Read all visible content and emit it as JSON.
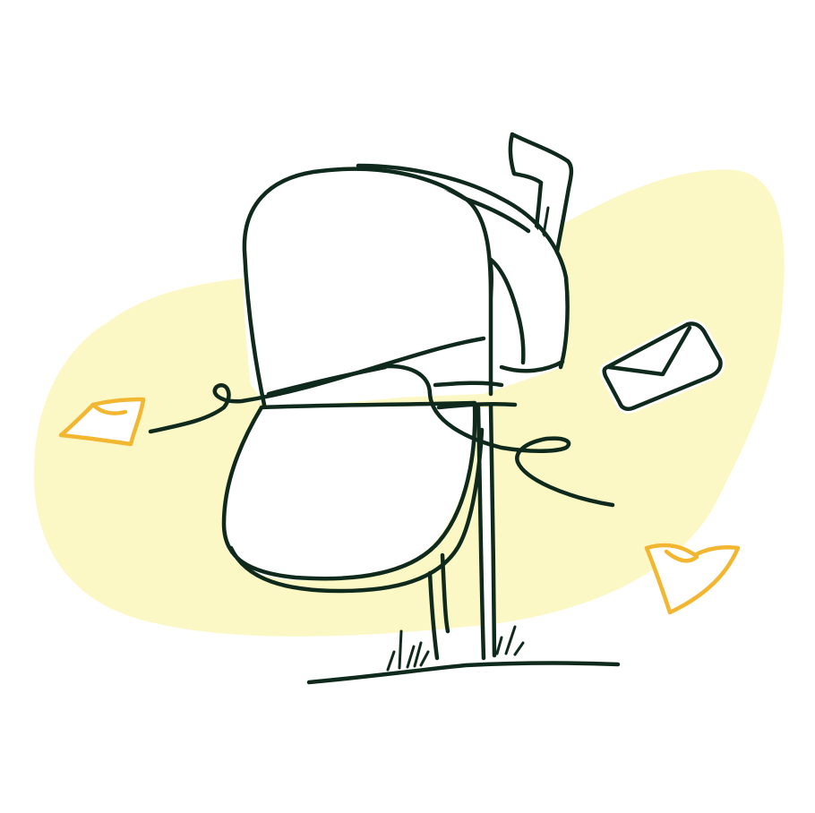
{
  "scene": {
    "subject": "mailbox",
    "background_color": "#ffffff",
    "blob_color": "#fcf8c6",
    "line_color": "#0f2a1c",
    "leaf_color": "#f2b630",
    "icons": [
      "mailbox-icon",
      "flag-icon",
      "envelope-icon",
      "leaf-icon",
      "grass-icon"
    ]
  }
}
